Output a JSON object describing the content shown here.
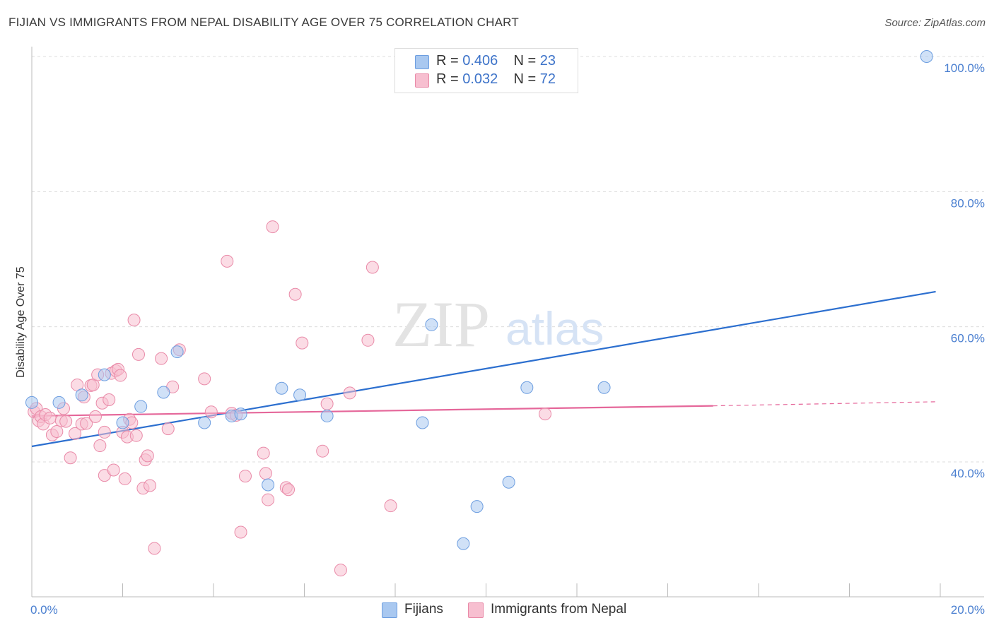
{
  "title": "FIJIAN VS IMMIGRANTS FROM NEPAL DISABILITY AGE OVER 75 CORRELATION CHART",
  "source": "Source: ZipAtlas.com",
  "watermark": {
    "zip": "ZIP",
    "atlas": "atlas"
  },
  "legend": {
    "rows": [
      {
        "r_label": "R =",
        "r_value": "0.406",
        "n_label": "N =",
        "n_value": "23",
        "color": "#a9c8f0",
        "border": "#6d9ee0"
      },
      {
        "r_label": "R =",
        "r_value": "0.032",
        "n_label": "N =",
        "n_value": "72",
        "color": "#f7bfd0",
        "border": "#e98aa8"
      }
    ]
  },
  "bottom_legend": [
    {
      "label": "Fijians",
      "color": "#a9c8f0",
      "border": "#6d9ee0"
    },
    {
      "label": "Immigrants from Nepal",
      "color": "#f7bfd0",
      "border": "#e98aa8"
    }
  ],
  "chart_data": {
    "type": "scatter",
    "title": "FIJIAN VS IMMIGRANTS FROM NEPAL DISABILITY AGE OVER 75 CORRELATION CHART",
    "xlabel": "",
    "ylabel": "Disability Age Over 75",
    "xlim": [
      0,
      20
    ],
    "ylim": [
      22,
      103
    ],
    "x_tick_labels": [
      "0.0%",
      "20.0%"
    ],
    "y_ticks": [
      40,
      60,
      80,
      100
    ],
    "y_tick_labels": [
      "40.0%",
      "60.0%",
      "80.0%",
      "100.0%"
    ],
    "grid": true,
    "series": [
      {
        "name": "Fijians",
        "color": "#6d9ee0",
        "fill": "#a9c8f0",
        "points": [
          [
            0.0,
            48.8
          ],
          [
            0.6,
            48.8
          ],
          [
            1.1,
            49.9
          ],
          [
            1.6,
            52.9
          ],
          [
            2.0,
            45.8
          ],
          [
            2.4,
            48.2
          ],
          [
            2.9,
            50.3
          ],
          [
            3.2,
            56.3
          ],
          [
            3.8,
            45.8
          ],
          [
            4.4,
            46.8
          ],
          [
            4.6,
            47.1
          ],
          [
            5.2,
            36.6
          ],
          [
            5.5,
            50.9
          ],
          [
            5.9,
            49.9
          ],
          [
            6.5,
            46.8
          ],
          [
            8.6,
            45.8
          ],
          [
            8.8,
            60.3
          ],
          [
            9.5,
            27.9
          ],
          [
            9.8,
            33.4
          ],
          [
            10.5,
            37.0
          ],
          [
            10.9,
            51.0
          ],
          [
            12.6,
            51.0
          ],
          [
            19.7,
            100.0
          ]
        ],
        "trend": {
          "x": [
            0.0,
            19.9
          ],
          "y": [
            42.3,
            65.2
          ]
        }
      },
      {
        "name": "Immigrants from Nepal",
        "color": "#e98aa8",
        "fill": "#f7bfd0",
        "points": [
          [
            0.05,
            47.4
          ],
          [
            0.1,
            47.9
          ],
          [
            0.15,
            46.1
          ],
          [
            0.2,
            46.7
          ],
          [
            0.25,
            45.6
          ],
          [
            0.3,
            47.0
          ],
          [
            0.4,
            46.5
          ],
          [
            0.45,
            44.0
          ],
          [
            0.55,
            44.5
          ],
          [
            0.65,
            46.1
          ],
          [
            0.7,
            47.9
          ],
          [
            0.75,
            46.0
          ],
          [
            0.85,
            40.6
          ],
          [
            0.95,
            44.2
          ],
          [
            1.0,
            51.4
          ],
          [
            1.1,
            45.6
          ],
          [
            1.15,
            49.6
          ],
          [
            1.2,
            45.7
          ],
          [
            1.3,
            51.3
          ],
          [
            1.35,
            51.4
          ],
          [
            1.4,
            46.7
          ],
          [
            1.45,
            52.9
          ],
          [
            1.5,
            42.4
          ],
          [
            1.55,
            48.7
          ],
          [
            1.6,
            44.4
          ],
          [
            1.6,
            38.0
          ],
          [
            1.7,
            49.2
          ],
          [
            1.75,
            53.1
          ],
          [
            1.8,
            38.8
          ],
          [
            1.85,
            53.5
          ],
          [
            1.9,
            53.7
          ],
          [
            1.95,
            52.8
          ],
          [
            2.0,
            44.4
          ],
          [
            2.05,
            37.5
          ],
          [
            2.1,
            43.7
          ],
          [
            2.15,
            46.3
          ],
          [
            2.2,
            45.8
          ],
          [
            2.25,
            61.0
          ],
          [
            2.3,
            43.9
          ],
          [
            2.35,
            55.9
          ],
          [
            2.45,
            36.1
          ],
          [
            2.5,
            40.3
          ],
          [
            2.55,
            40.9
          ],
          [
            2.6,
            36.5
          ],
          [
            2.7,
            27.2
          ],
          [
            2.85,
            55.3
          ],
          [
            3.0,
            44.9
          ],
          [
            3.1,
            51.1
          ],
          [
            3.25,
            56.6
          ],
          [
            3.8,
            52.3
          ],
          [
            3.95,
            47.4
          ],
          [
            4.3,
            69.7
          ],
          [
            4.4,
            47.2
          ],
          [
            4.6,
            29.6
          ],
          [
            4.7,
            37.9
          ],
          [
            5.1,
            41.3
          ],
          [
            5.15,
            38.3
          ],
          [
            5.2,
            34.4
          ],
          [
            5.3,
            74.8
          ],
          [
            5.6,
            36.2
          ],
          [
            5.65,
            35.9
          ],
          [
            5.8,
            64.8
          ],
          [
            5.95,
            57.6
          ],
          [
            6.4,
            41.6
          ],
          [
            6.5,
            48.6
          ],
          [
            6.8,
            24.0
          ],
          [
            7.0,
            50.2
          ],
          [
            7.4,
            58.0
          ],
          [
            7.5,
            68.8
          ],
          [
            7.9,
            33.5
          ],
          [
            11.3,
            47.1
          ],
          [
            4.5,
            46.9
          ]
        ],
        "trend": {
          "x": [
            0.0,
            15.0
          ],
          "y": [
            46.8,
            48.3
          ]
        },
        "trend_dashed": {
          "x": [
            15.0,
            19.9
          ],
          "y": [
            48.3,
            48.9
          ]
        }
      }
    ]
  }
}
